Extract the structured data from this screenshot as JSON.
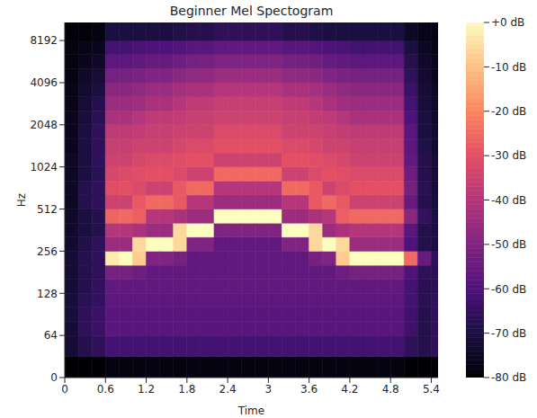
{
  "chart_data": {
    "type": "heatmap",
    "title": "Beginner Mel Spectogram",
    "x_label": "Time",
    "y_label": "Hz",
    "log": "y",
    "xlim": [
      0,
      5.5
    ],
    "xticks": [
      0,
      0.6,
      1.2,
      1.8,
      2.4,
      3,
      3.6,
      4.2,
      4.8,
      5.4
    ],
    "ylim": [
      0,
      11025
    ],
    "yticks": [
      0,
      64,
      128,
      256,
      512,
      1024,
      2048,
      4096,
      8192
    ],
    "x_edges": [
      0,
      0.2,
      0.4,
      0.6,
      0.8,
      1.0,
      1.2,
      1.4,
      1.6,
      1.8,
      2.0,
      2.2,
      2.4,
      2.6,
      2.8,
      3.0,
      3.2,
      3.4,
      3.6,
      3.8,
      4.0,
      4.2,
      4.4,
      4.6,
      4.8,
      5.0,
      5.2,
      5.4,
      5.5
    ],
    "y_edges": [
      0,
      32,
      64,
      81,
      102,
      128,
      161,
      203,
      256,
      323,
      406,
      512,
      645,
      813,
      1024,
      1290,
      1625,
      2048,
      2580,
      3251,
      4096,
      5161,
      6502,
      8192,
      11025
    ],
    "cells": [
      [
        -80,
        -72,
        -72,
        -71,
        -71,
        -72,
        -72,
        -72,
        -73,
        -74,
        -74,
        -75,
        -75,
        -75,
        -75,
        -76,
        -76,
        -76,
        -77,
        -77,
        -78,
        -78,
        -78,
        -79
      ],
      [
        -80,
        -68,
        -66,
        -66,
        -67,
        -68,
        -68,
        -68,
        -69,
        -70,
        -70,
        -68,
        -68,
        -70,
        -70,
        -70,
        -70,
        -71,
        -72,
        -73,
        -74,
        -76,
        -77,
        -79
      ],
      [
        -80,
        -66,
        -64,
        -64,
        -65,
        -65,
        -66,
        -66,
        -66,
        -68,
        -68,
        -66,
        -66,
        -67,
        -66,
        -66,
        -66,
        -67,
        -68,
        -70,
        -72,
        -74,
        -76,
        -78
      ],
      [
        -78,
        -62,
        -58,
        -58,
        -57,
        -56,
        -52,
        -3,
        -45,
        -40,
        -26,
        -35,
        -31,
        -33,
        -35,
        -36,
        -38,
        -42,
        -45,
        -48,
        -52,
        -57,
        -62,
        -70
      ],
      [
        -78,
        -62,
        -58,
        -58,
        -57,
        -56,
        -52,
        0,
        -45,
        -40,
        -25,
        -35,
        -30,
        -32,
        -35,
        -36,
        -38,
        -42,
        -45,
        -48,
        -52,
        -57,
        -62,
        -70
      ],
      [
        -78,
        -62,
        -58,
        -58,
        -57,
        -56,
        -54,
        -8,
        -6,
        -42,
        -27,
        -28,
        -32,
        -31,
        -33,
        -35,
        -37,
        -40,
        -44,
        -47,
        -51,
        -56,
        -61,
        -70
      ],
      [
        -78,
        -62,
        -58,
        -58,
        -57,
        -56,
        -56,
        -50,
        0,
        -45,
        -40,
        -25,
        -35,
        -30,
        -32,
        -35,
        -36,
        -38,
        -42,
        -45,
        -50,
        -55,
        -60,
        -70
      ],
      [
        -78,
        -62,
        -58,
        -58,
        -57,
        -56,
        -56,
        -50,
        0,
        -45,
        -40,
        -25,
        -35,
        -30,
        -32,
        -35,
        -36,
        -38,
        -42,
        -45,
        -50,
        -55,
        -60,
        -70
      ],
      [
        -78,
        -62,
        -58,
        -58,
        -57,
        -56,
        -56,
        -52,
        -6,
        -6,
        -42,
        -28,
        -28,
        -32,
        -31,
        -33,
        -35,
        -37,
        -40,
        -43,
        -48,
        -53,
        -59,
        -69
      ],
      [
        -78,
        -62,
        -58,
        -58,
        -57,
        -56,
        -56,
        -56,
        -50,
        0,
        -45,
        -40,
        -25,
        -35,
        -30,
        -32,
        -35,
        -36,
        -38,
        -42,
        -47,
        -52,
        -58,
        -68
      ],
      [
        -78,
        -62,
        -58,
        -58,
        -57,
        -56,
        -56,
        -56,
        -50,
        0,
        -45,
        -40,
        -25,
        -35,
        -30,
        -32,
        -35,
        -36,
        -38,
        -42,
        -47,
        -52,
        -58,
        -68
      ],
      [
        -78,
        -62,
        -58,
        -58,
        -57,
        -56,
        -56,
        -56,
        -56,
        -50,
        0,
        -45,
        -40,
        -25,
        -35,
        -30,
        -32,
        -35,
        -36,
        -40,
        -45,
        -50,
        -56,
        -66
      ],
      [
        -78,
        -62,
        -58,
        -58,
        -57,
        -56,
        -56,
        -56,
        -56,
        -50,
        0,
        -45,
        -40,
        -25,
        -35,
        -30,
        -32,
        -35,
        -36,
        -40,
        -45,
        -50,
        -56,
        -66
      ],
      [
        -78,
        -62,
        -58,
        -58,
        -57,
        -56,
        -56,
        -56,
        -56,
        -50,
        0,
        -45,
        -40,
        -25,
        -35,
        -30,
        -32,
        -35,
        -36,
        -40,
        -45,
        -50,
        -56,
        -66
      ],
      [
        -78,
        -62,
        -58,
        -58,
        -57,
        -56,
        -56,
        -56,
        -56,
        -50,
        0,
        -45,
        -40,
        -25,
        -35,
        -30,
        -32,
        -35,
        -36,
        -40,
        -45,
        -50,
        -56,
        -66
      ],
      [
        -78,
        -62,
        -58,
        -58,
        -57,
        -56,
        -56,
        -56,
        -56,
        -50,
        0,
        -45,
        -40,
        -25,
        -35,
        -30,
        -32,
        -35,
        -36,
        -40,
        -45,
        -50,
        -56,
        -66
      ],
      [
        -78,
        -62,
        -58,
        -58,
        -57,
        -56,
        -56,
        -56,
        -50,
        0,
        -45,
        -40,
        -25,
        -35,
        -30,
        -32,
        -35,
        -36,
        -38,
        -42,
        -47,
        -52,
        -58,
        -68
      ],
      [
        -78,
        -62,
        -58,
        -58,
        -57,
        -56,
        -56,
        -56,
        -50,
        0,
        -45,
        -40,
        -25,
        -35,
        -30,
        -32,
        -35,
        -36,
        -38,
        -42,
        -47,
        -52,
        -58,
        -68
      ],
      [
        -78,
        -62,
        -58,
        -58,
        -57,
        -56,
        -56,
        -52,
        -6,
        -6,
        -42,
        -28,
        -28,
        -32,
        -31,
        -33,
        -35,
        -37,
        -40,
        -43,
        -48,
        -53,
        -59,
        -69
      ],
      [
        -78,
        -62,
        -58,
        -58,
        -57,
        -56,
        -56,
        -50,
        0,
        -45,
        -40,
        -25,
        -35,
        -30,
        -32,
        -35,
        -36,
        -38,
        -42,
        -45,
        -50,
        -55,
        -60,
        -70
      ],
      [
        -78,
        -62,
        -58,
        -58,
        -57,
        -56,
        -54,
        -8,
        -6,
        -42,
        -27,
        -28,
        -32,
        -31,
        -33,
        -35,
        -37,
        -40,
        -44,
        -47,
        -51,
        -56,
        -61,
        -70
      ],
      [
        -78,
        -62,
        -58,
        -58,
        -57,
        -56,
        -52,
        0,
        -45,
        -40,
        -25,
        -35,
        -30,
        -32,
        -35,
        -36,
        -38,
        -42,
        -45,
        -48,
        -52,
        -57,
        -62,
        -70
      ],
      [
        -78,
        -62,
        -58,
        -58,
        -57,
        -56,
        -52,
        0,
        -45,
        -40,
        -25,
        -35,
        -30,
        -32,
        -35,
        -36,
        -38,
        -42,
        -45,
        -48,
        -52,
        -57,
        -62,
        -70
      ],
      [
        -78,
        -62,
        -58,
        -58,
        -57,
        -56,
        -52,
        0,
        -45,
        -40,
        -25,
        -35,
        -30,
        -32,
        -35,
        -36,
        -38,
        -42,
        -45,
        -48,
        -52,
        -57,
        -62,
        -70
      ],
      [
        -78,
        -62,
        -58,
        -58,
        -57,
        -56,
        -52,
        0,
        -45,
        -40,
        -25,
        -35,
        -30,
        -32,
        -35,
        -36,
        -38,
        -42,
        -45,
        -48,
        -52,
        -57,
        -62,
        -70
      ],
      [
        -80,
        -66,
        -63,
        -63,
        -62,
        -62,
        -60,
        -25,
        -60,
        -58,
        -48,
        -55,
        -52,
        -54,
        -56,
        -57,
        -58,
        -60,
        -62,
        -64,
        -66,
        -68,
        -70,
        -75
      ],
      [
        -80,
        -68,
        -68,
        -68,
        -67,
        -67,
        -66,
        -55,
        -68,
        -68,
        -65,
        -68,
        -67,
        -68,
        -68,
        -69,
        -70,
        -70,
        -71,
        -72,
        -73,
        -74,
        -75,
        -77
      ],
      [
        -80,
        -66,
        -66,
        -66,
        -66,
        -67,
        -67,
        -66,
        -70,
        -70,
        -70,
        -71,
        -72,
        -72,
        -72,
        -73,
        -73,
        -74,
        -74,
        -75,
        -76,
        -76,
        -77,
        -78
      ]
    ],
    "colorbar": {
      "range": [
        -80,
        0
      ],
      "ticks": [
        {
          "value": 0,
          "label": "+0 dB"
        },
        {
          "value": -10,
          "label": "-10 dB"
        },
        {
          "value": -20,
          "label": "-20 dB"
        },
        {
          "value": -30,
          "label": "-30 dB"
        },
        {
          "value": -40,
          "label": "-40 dB"
        },
        {
          "value": -50,
          "label": "-50 dB"
        },
        {
          "value": -60,
          "label": "-60 dB"
        },
        {
          "value": -70,
          "label": "-70 dB"
        },
        {
          "value": -80,
          "label": "-80 dB"
        }
      ]
    }
  }
}
